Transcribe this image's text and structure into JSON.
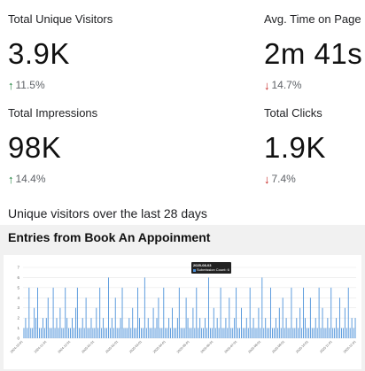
{
  "metrics": [
    {
      "label": "Total Unique Visitors",
      "value": "3.9K",
      "change": "11.5%",
      "direction": "up"
    },
    {
      "label": "Avg. Time on Page",
      "value": "2m 41s",
      "change": "14.7%",
      "direction": "down"
    },
    {
      "label": "Total Impressions",
      "value": "98K",
      "change": "14.4%",
      "direction": "up"
    },
    {
      "label": "Total Clicks",
      "value": "1.9K",
      "change": "7.4%",
      "direction": "down"
    }
  ],
  "arrows": {
    "up": "↑",
    "down": "↓"
  },
  "colors": {
    "up": "#188038",
    "down": "#c5221f",
    "bar": "#4a90d9"
  },
  "caption": "Unique visitors over the last 28 days",
  "panel_title": "Entries from Book An Appoinment",
  "tooltip": {
    "title": "2025-08-03",
    "series": "Submission Count: 6"
  },
  "chart_data": {
    "type": "bar",
    "title": "",
    "xlabel": "",
    "ylabel": "",
    "ylim": [
      0,
      7
    ],
    "yticks": [
      0,
      1,
      2,
      3,
      4,
      5,
      6,
      7
    ],
    "xticks": [
      "2024-10-01",
      "2024-11-01",
      "2024-12-01",
      "2025-01-01",
      "2025-02-01",
      "2025-03-01",
      "2025-04-01",
      "2025-05-01",
      "2025-06-01",
      "2025-07-01",
      "2025-08-01",
      "2025-09-01",
      "2025-10-01",
      "2025-11-01",
      "2025-12-01"
    ],
    "grid": true,
    "series": [
      {
        "values": [
          1,
          2,
          1,
          5,
          1,
          1,
          3,
          2,
          5,
          1,
          1,
          2,
          1,
          2,
          4,
          1,
          1,
          5,
          1,
          2,
          1,
          3,
          1,
          1,
          5,
          2,
          1,
          1,
          2,
          1,
          3,
          5,
          1,
          1,
          2,
          1,
          4,
          1,
          1,
          2,
          1,
          1,
          3,
          1,
          5,
          1,
          2,
          1,
          1,
          6,
          1,
          2,
          1,
          4,
          1,
          1,
          2,
          5,
          1,
          1,
          1,
          2,
          1,
          3,
          1,
          1,
          5,
          2,
          1,
          1,
          6,
          1,
          2,
          1,
          1,
          3,
          1,
          2,
          4,
          1,
          1,
          5,
          1,
          1,
          2,
          1,
          3,
          1,
          1,
          2,
          5,
          1,
          1,
          1,
          4,
          2,
          1,
          1,
          3,
          1,
          5,
          1,
          2,
          1,
          1,
          2,
          1,
          6,
          1,
          1,
          3,
          1,
          2,
          1,
          5,
          1,
          1,
          2,
          1,
          4,
          1,
          1,
          2,
          5,
          1,
          1,
          3,
          1,
          1,
          2,
          1,
          5,
          1,
          2,
          1,
          1,
          3,
          1,
          6,
          1,
          2,
          1,
          1,
          5,
          1,
          1,
          2,
          1,
          3,
          1,
          4,
          1,
          2,
          1,
          1,
          5,
          1,
          1,
          2,
          1,
          3,
          1,
          5,
          2,
          1,
          1,
          4,
          1,
          1,
          2,
          1,
          5,
          1,
          3,
          1,
          1,
          2,
          1,
          5,
          1,
          1,
          2,
          1,
          4,
          1,
          1,
          3,
          1,
          5,
          1,
          2,
          1,
          2
        ]
      }
    ]
  }
}
